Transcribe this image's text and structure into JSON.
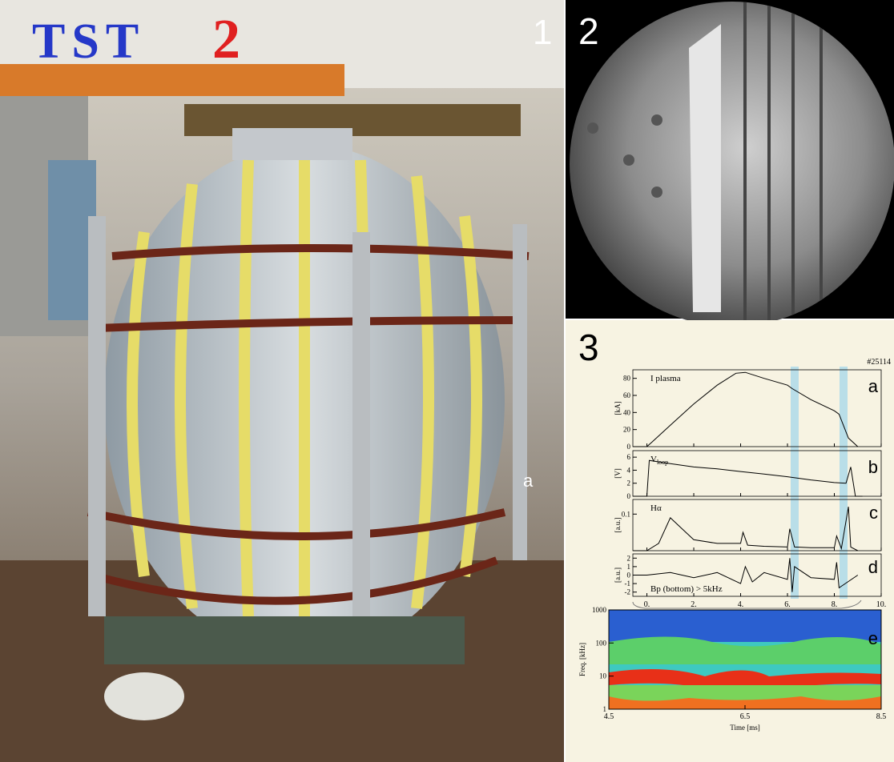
{
  "photo": {
    "logo": "TST",
    "logo_number": "2",
    "panel_label": "1",
    "annotation": "a"
  },
  "camera": {
    "panel_label": "2"
  },
  "signals": {
    "panel_label": "3",
    "shot": "#25114",
    "xlim": [
      -0.6,
      10
    ],
    "xticks": [
      {
        "value": 0,
        "label": "0."
      },
      {
        "value": 2,
        "label": "2."
      },
      {
        "value": 4,
        "label": "4."
      },
      {
        "value": 6,
        "label": "6."
      },
      {
        "value": 8,
        "label": "8."
      },
      {
        "value": 10,
        "label": "10."
      }
    ],
    "plots": [
      {
        "label": "a",
        "trace_label": "I plasma",
        "unit": "[kA]",
        "ylim": [
          0,
          90
        ],
        "yticks": [
          0,
          20,
          40,
          60,
          80
        ],
        "x": [
          -0.6,
          0,
          0.2,
          1,
          2,
          3,
          3.8,
          4.2,
          5,
          6,
          6.2,
          7,
          8,
          8.2,
          8.6,
          9
        ],
        "values": [
          0,
          0,
          5,
          25,
          50,
          72,
          86,
          87,
          80,
          72,
          68,
          55,
          42,
          38,
          10,
          0
        ]
      },
      {
        "label": "b",
        "trace_label": "V",
        "trace_subscript": "loop",
        "unit": "[V]",
        "ylim": [
          0,
          7
        ],
        "yticks": [
          0,
          2,
          4,
          6
        ],
        "x": [
          -0.6,
          0,
          0.1,
          1,
          2,
          3,
          4,
          5,
          6,
          7,
          8,
          8.5,
          8.7,
          8.9,
          9,
          9.2
        ],
        "values": [
          0,
          0,
          5.5,
          5,
          4.5,
          4.2,
          3.8,
          3.4,
          3,
          2.5,
          2.1,
          2,
          4.5,
          0,
          0,
          0
        ]
      },
      {
        "label": "c",
        "trace_label": "Hα",
        "unit": "[a.u.]",
        "ylim": [
          0,
          0.14
        ],
        "yticks": [
          0.1
        ],
        "x": [
          -0.6,
          0,
          0.5,
          1,
          1.5,
          2,
          3,
          4,
          4.1,
          4.3,
          5,
          6,
          6.1,
          6.3,
          7,
          8,
          8.1,
          8.3,
          8.6,
          8.7,
          9
        ],
        "values": [
          0,
          0,
          0.02,
          0.09,
          0.06,
          0.03,
          0.02,
          0.02,
          0.05,
          0.015,
          0.012,
          0.01,
          0.06,
          0.01,
          0.008,
          0.008,
          0.04,
          0.006,
          0.12,
          0.01,
          0
        ]
      },
      {
        "label": "d",
        "trace_label": "Bp (bottom) > 5kHz",
        "unit": "[a.u.]",
        "ylim": [
          -2.5,
          2.5
        ],
        "yticks": [
          -2,
          -1,
          0,
          1,
          2
        ],
        "x": [
          -0.6,
          0,
          1,
          2,
          3,
          4,
          4.2,
          4.5,
          5,
          6,
          6.1,
          6.2,
          6.3,
          7,
          8,
          8.1,
          8.2,
          9
        ],
        "values": [
          0,
          0,
          0.3,
          -0.3,
          0.3,
          -1,
          1,
          -0.8,
          0.3,
          -0.5,
          2,
          -2,
          1,
          -0.3,
          -0.5,
          1.5,
          -1.5,
          0
        ]
      }
    ]
  },
  "spectrogram": {
    "label": "e",
    "ylabel": "Freq. [kHz]",
    "xlabel": "Time [ms]",
    "xlim": [
      4.5,
      8.5
    ],
    "xticks": [
      4.5,
      6.5,
      8.5
    ],
    "ylim": [
      1,
      1000
    ],
    "yticks": [
      1,
      10,
      100,
      1000
    ],
    "log": true
  }
}
